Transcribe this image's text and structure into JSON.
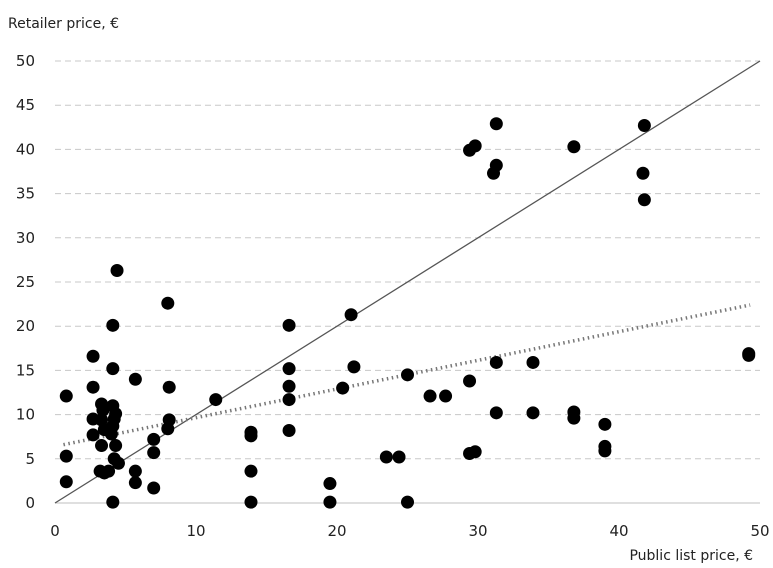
{
  "chart_data": {
    "type": "scatter",
    "xlabel": "Public list price, €",
    "ylabel": "Retailer price, €",
    "xlim": [
      0,
      50
    ],
    "ylim": [
      0,
      50
    ],
    "x_ticks": [
      "0",
      "10",
      "20",
      "30",
      "40",
      "50"
    ],
    "y_ticks": [
      "0",
      "5",
      "10",
      "15",
      "20",
      "25",
      "30",
      "35",
      "40",
      "45",
      "50"
    ],
    "grid": "horizontal dashed",
    "colors": {
      "points": "#000000",
      "grid": "#c8c8c8",
      "diagonal": "#555555",
      "trend": "#777777"
    },
    "points": [
      [
        0.8,
        12.1
      ],
      [
        0.8,
        5.3
      ],
      [
        0.8,
        2.4
      ],
      [
        2.7,
        16.6
      ],
      [
        2.7,
        13.1
      ],
      [
        2.7,
        9.5
      ],
      [
        2.7,
        7.7
      ],
      [
        3.3,
        11.2
      ],
      [
        3.4,
        10.5
      ],
      [
        3.3,
        9.4
      ],
      [
        3.5,
        8.3
      ],
      [
        3.3,
        6.5
      ],
      [
        3.2,
        3.6
      ],
      [
        3.5,
        3.4
      ],
      [
        3.8,
        3.6
      ],
      [
        4.1,
        20.1
      ],
      [
        4.1,
        15.2
      ],
      [
        4.1,
        11.0
      ],
      [
        4.3,
        10.1
      ],
      [
        4.2,
        9.5
      ],
      [
        4.1,
        8.7
      ],
      [
        4.0,
        7.8
      ],
      [
        4.3,
        6.5
      ],
      [
        4.2,
        5.0
      ],
      [
        4.5,
        4.5
      ],
      [
        4.1,
        0.1
      ],
      [
        4.4,
        26.3
      ],
      [
        5.7,
        14.0
      ],
      [
        5.7,
        3.6
      ],
      [
        5.7,
        2.3
      ],
      [
        7.0,
        7.2
      ],
      [
        7.0,
        5.7
      ],
      [
        7.0,
        1.7
      ],
      [
        8.0,
        22.6
      ],
      [
        8.1,
        13.1
      ],
      [
        8.1,
        9.4
      ],
      [
        8.0,
        8.4
      ],
      [
        11.4,
        11.7
      ],
      [
        13.9,
        8.0
      ],
      [
        13.9,
        7.6
      ],
      [
        13.9,
        3.6
      ],
      [
        13.9,
        0.1
      ],
      [
        16.6,
        20.1
      ],
      [
        16.6,
        15.2
      ],
      [
        16.6,
        13.2
      ],
      [
        16.6,
        11.7
      ],
      [
        16.6,
        8.2
      ],
      [
        19.5,
        2.2
      ],
      [
        19.5,
        0.1
      ],
      [
        20.4,
        13.0
      ],
      [
        21.0,
        21.3
      ],
      [
        21.2,
        15.4
      ],
      [
        23.5,
        5.2
      ],
      [
        24.4,
        5.2
      ],
      [
        25.0,
        14.5
      ],
      [
        25.0,
        0.1
      ],
      [
        26.6,
        12.1
      ],
      [
        27.7,
        12.1
      ],
      [
        29.4,
        39.9
      ],
      [
        29.8,
        40.4
      ],
      [
        29.4,
        13.8
      ],
      [
        29.4,
        5.6
      ],
      [
        29.8,
        5.8
      ],
      [
        31.1,
        37.3
      ],
      [
        31.3,
        38.2
      ],
      [
        31.3,
        42.9
      ],
      [
        31.3,
        15.9
      ],
      [
        31.3,
        10.2
      ],
      [
        33.9,
        15.9
      ],
      [
        33.9,
        10.2
      ],
      [
        36.8,
        40.3
      ],
      [
        36.8,
        10.3
      ],
      [
        36.8,
        9.6
      ],
      [
        39.0,
        8.9
      ],
      [
        39.0,
        6.4
      ],
      [
        39.0,
        5.9
      ],
      [
        41.8,
        42.7
      ],
      [
        41.7,
        37.3
      ],
      [
        41.8,
        34.3
      ],
      [
        49.2,
        16.9
      ],
      [
        49.2,
        16.7
      ]
    ],
    "reference_line": {
      "style": "solid",
      "from": [
        0,
        0
      ],
      "to": [
        50,
        50
      ]
    },
    "trendline": {
      "style": "dotted",
      "from": [
        0.6,
        6.6
      ],
      "to": [
        49.3,
        22.4
      ]
    }
  }
}
